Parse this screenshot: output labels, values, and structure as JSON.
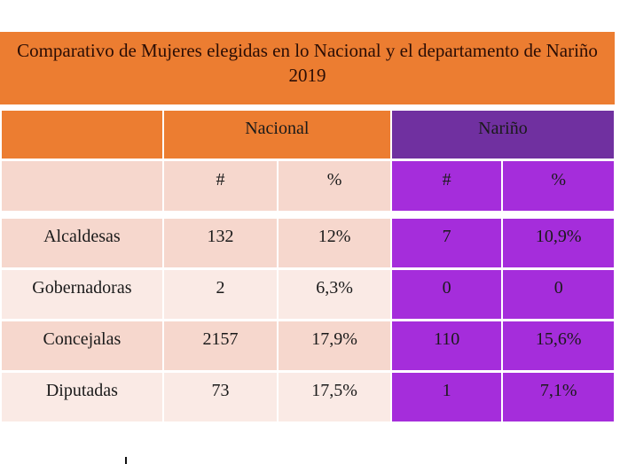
{
  "title": {
    "line1": "Comparativo de Mujeres elegidas en lo Nacional y el departamento de Nariño",
    "line2": "2019"
  },
  "table": {
    "group_headers": [
      "",
      "Nacional",
      "Nariño"
    ],
    "sub_headers": [
      "",
      "#",
      "%",
      "#",
      "%"
    ],
    "rows": [
      {
        "label": "Alcaldesas",
        "nacional_count": "132",
        "nacional_pct": "12%",
        "narino_count": "7",
        "narino_pct": "10,9%"
      },
      {
        "label": "Gobernadoras",
        "nacional_count": "2",
        "nacional_pct": "6,3%",
        "narino_count": "0",
        "narino_pct": "0"
      },
      {
        "label": "Concejalas",
        "nacional_count": "2157",
        "nacional_pct": "17,9%",
        "narino_count": "110",
        "narino_pct": "15,6%"
      },
      {
        "label": "Diputadas",
        "nacional_count": "73",
        "nacional_pct": "17,5%",
        "narino_count": "1",
        "narino_pct": "7,1%"
      }
    ]
  },
  "colors": {
    "orange": "#ec7d31",
    "purple_header": "#7030a0",
    "purple_cells": "#a52ddb",
    "pink_row_a": "#f6d7cd",
    "pink_row_b": "#faeae5"
  }
}
